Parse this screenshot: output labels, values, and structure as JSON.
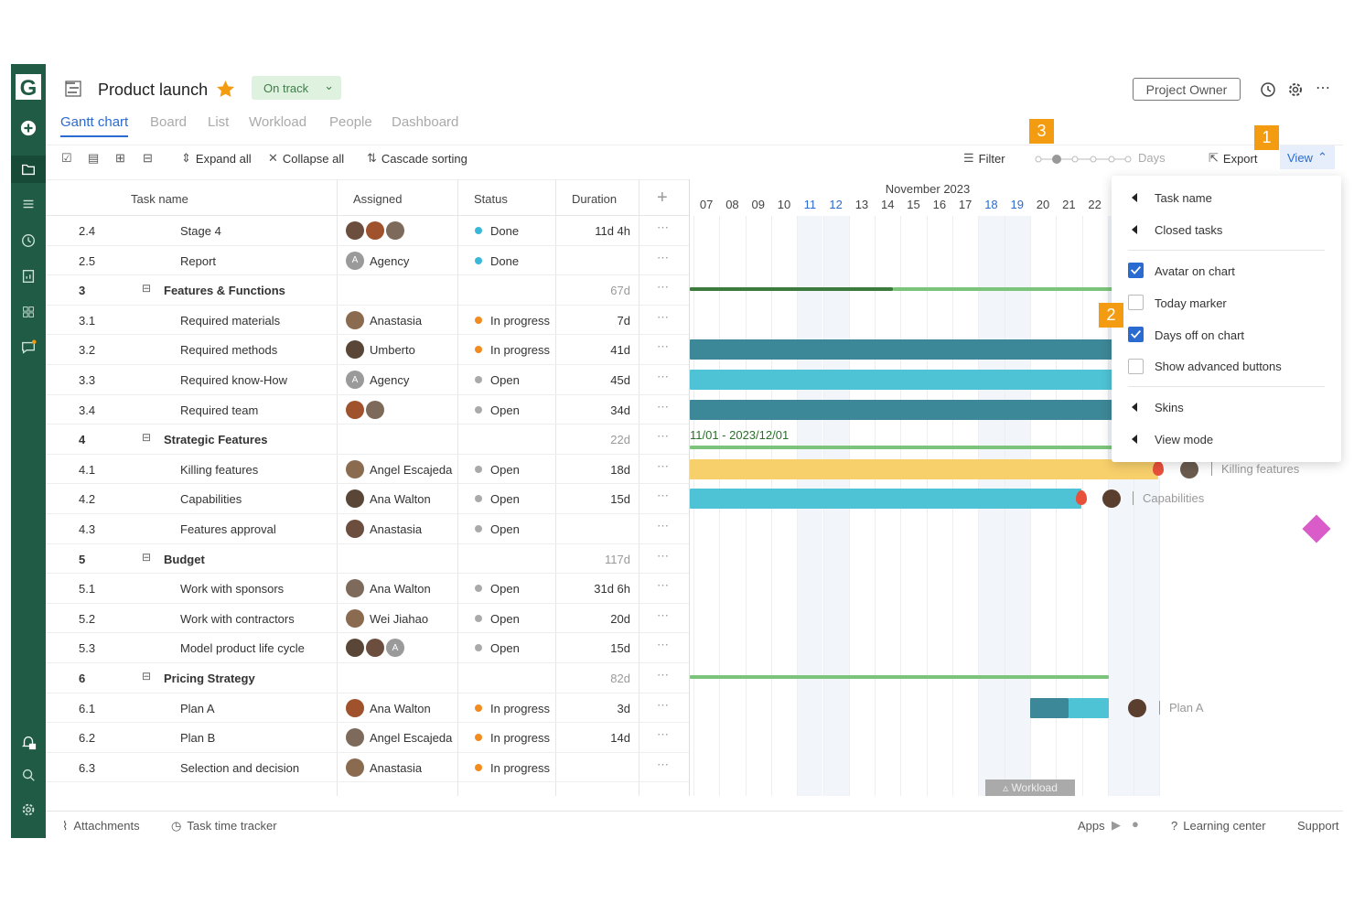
{
  "app": {
    "logo": "G"
  },
  "header": {
    "title": "Product launch",
    "status": "On track",
    "owner": "Project Owner"
  },
  "tabs": [
    "Gantt chart",
    "Board",
    "List",
    "Workload",
    "People",
    "Dashboard"
  ],
  "toolbar": {
    "expand": "Expand all",
    "collapse": "Collapse all",
    "cascade": "Cascade sorting",
    "filter": "Filter",
    "zoom": "Days",
    "export": "Export",
    "view": "View"
  },
  "columns": {
    "task": "Task name",
    "assigned": "Assigned",
    "status": "Status",
    "duration": "Duration"
  },
  "rows": [
    {
      "num": "2.4",
      "name": "Stage 4",
      "assigned": "",
      "status": "Done",
      "duration": "11d 4h"
    },
    {
      "num": "2.5",
      "name": "Report",
      "assigned": "Agency",
      "status": "Done",
      "duration": ""
    },
    {
      "num": "3",
      "name": "Features & Functions",
      "assigned": "",
      "status": "",
      "duration": "67d"
    },
    {
      "num": "3.1",
      "name": "Required materials",
      "assigned": "Anastasia",
      "status": "In progress",
      "duration": "7d"
    },
    {
      "num": "3.2",
      "name": "Required methods",
      "assigned": "Umberto",
      "status": "In progress",
      "duration": "41d"
    },
    {
      "num": "3.3",
      "name": "Required know-How",
      "assigned": "Agency",
      "status": "Open",
      "duration": "45d"
    },
    {
      "num": "3.4",
      "name": "Required team",
      "assigned": "",
      "status": "Open",
      "duration": "34d"
    },
    {
      "num": "4",
      "name": "Strategic Features",
      "assigned": "",
      "status": "",
      "duration": "22d"
    },
    {
      "num": "4.1",
      "name": "Killing features",
      "assigned": "Angel Escajeda",
      "status": "Open",
      "duration": "18d"
    },
    {
      "num": "4.2",
      "name": "Capabilities",
      "assigned": "Ana Walton",
      "status": "Open",
      "duration": "15d"
    },
    {
      "num": "4.3",
      "name": "Features approval",
      "assigned": "Anastasia",
      "status": "Open",
      "duration": ""
    },
    {
      "num": "5",
      "name": "Budget",
      "assigned": "",
      "status": "",
      "duration": "117d"
    },
    {
      "num": "5.1",
      "name": "Work with sponsors",
      "assigned": "Ana Walton",
      "status": "Open",
      "duration": "31d 6h"
    },
    {
      "num": "5.2",
      "name": "Work with contractors",
      "assigned": "Wei Jiahao",
      "status": "Open",
      "duration": "20d"
    },
    {
      "num": "5.3",
      "name": "Model product life cycle",
      "assigned": "",
      "status": "Open",
      "duration": "15d"
    },
    {
      "num": "6",
      "name": "Pricing Strategy",
      "assigned": "",
      "status": "",
      "duration": "82d"
    },
    {
      "num": "6.1",
      "name": "Plan A",
      "assigned": "Ana Walton",
      "status": "In progress",
      "duration": "3d"
    },
    {
      "num": "6.2",
      "name": "Plan B",
      "assigned": "Angel Escajeda",
      "status": "In progress",
      "duration": "14d"
    },
    {
      "num": "6.3",
      "name": "Selection and decision",
      "assigned": "Anastasia",
      "status": "In progress",
      "duration": ""
    }
  ],
  "chart": {
    "month": "November 2023",
    "days": [
      "07",
      "08",
      "09",
      "10",
      "11",
      "12",
      "13",
      "14",
      "15",
      "16",
      "17",
      "18",
      "19",
      "20",
      "21",
      "22"
    ],
    "range_label": "11/01 - 2023/12/01",
    "labels": {
      "killing": "Killing features",
      "capabilities": "Capabilities",
      "plana": "Plan A"
    },
    "workload": "Workload"
  },
  "view_menu": {
    "task_name": "Task name",
    "closed": "Closed tasks",
    "avatar": "Avatar on chart",
    "today": "Today marker",
    "daysoff": "Days off on chart",
    "advanced": "Show advanced buttons",
    "skins": "Skins",
    "viewmode": "View mode"
  },
  "badges": [
    "1",
    "2",
    "3"
  ],
  "footer": {
    "attachments": "Attachments",
    "tracker": "Task time tracker",
    "apps": "Apps",
    "learning": "Learning center",
    "support": "Support"
  },
  "colors": {
    "rail": "#1f5b45",
    "accent": "#2a6bd1",
    "badge": "#f39c12"
  }
}
